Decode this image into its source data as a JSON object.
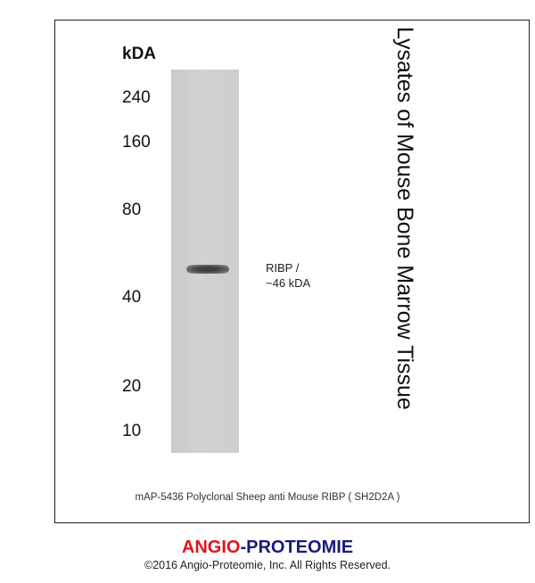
{
  "blot": {
    "unit_label": "kDA",
    "markers": [
      "240",
      "160",
      "80",
      "40",
      "20",
      "10"
    ],
    "band_label_line1": "RIBP /",
    "band_label_line2": "~46 kDA",
    "sample_title": "Lysates of Mouse Bone Marrow Tissue",
    "caption": "mAP-5436 Polyclonal Sheep anti Mouse RIBP ( SH2D2A )"
  },
  "footer": {
    "brand_part1": "ANGIO",
    "brand_sep": "-",
    "brand_part2": "PROTEOMIE",
    "brand_color1": "#e0141e",
    "brand_color2": "#1a1a7a",
    "copyright": "©2016 Angio-Proteomie, Inc.  All Rights Reserved."
  }
}
